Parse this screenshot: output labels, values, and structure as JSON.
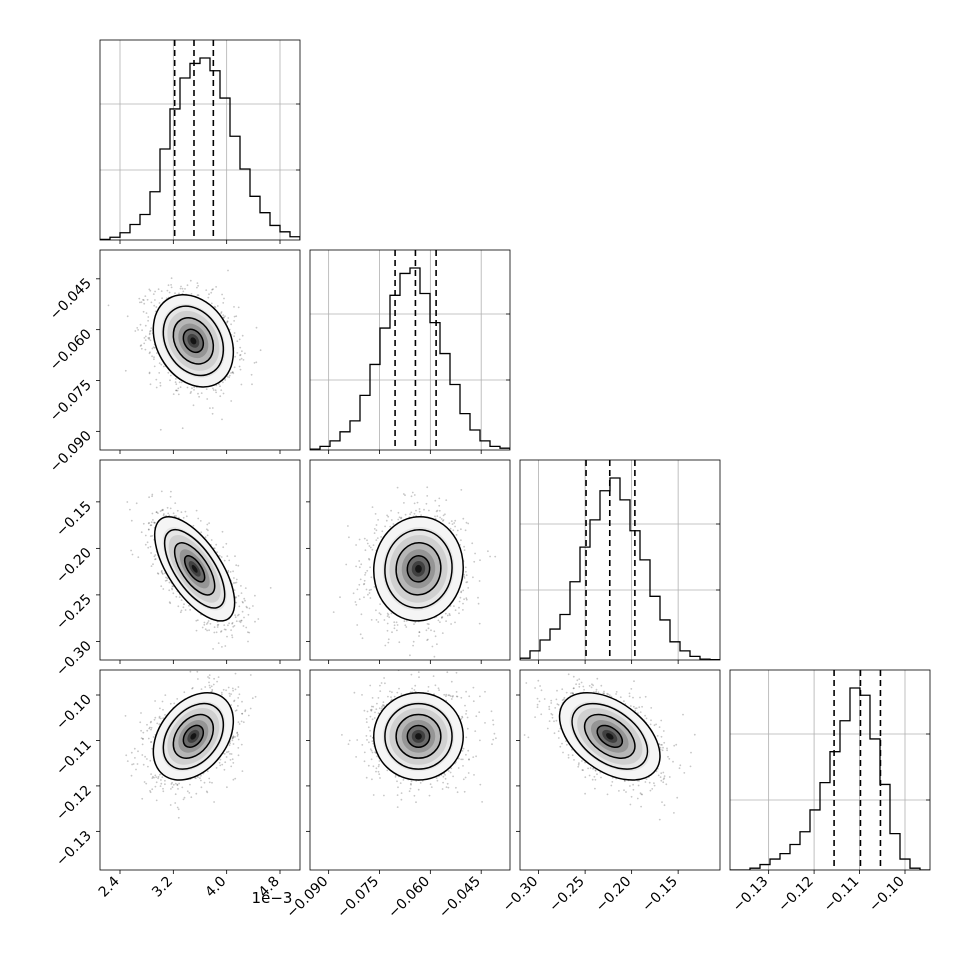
{
  "chart_data": {
    "type": "corner",
    "offset_label": "1e−3",
    "parameters": [
      {
        "range": [
          2.1,
          5.1
        ],
        "ticks": [
          "2.4",
          "3.2",
          "4.0",
          "4.8"
        ],
        "tick_values": [
          2.4,
          3.2,
          4.0,
          4.8
        ],
        "median": 3.51,
        "q16": 3.22,
        "q84": 3.8,
        "hist_edges_start": 2.1,
        "hist_bin_width": 0.15,
        "hist_values": [
          0.003,
          0.015,
          0.04,
          0.085,
          0.14,
          0.265,
          0.5,
          0.72,
          0.89,
          0.97,
          1.0,
          0.93,
          0.78,
          0.57,
          0.39,
          0.24,
          0.15,
          0.08,
          0.045,
          0.018
        ]
      },
      {
        "range": [
          -0.0955,
          -0.0365
        ],
        "ticks": [
          "−0.090",
          "−0.075",
          "−0.060",
          "−0.045"
        ],
        "tick_values": [
          -0.09,
          -0.075,
          -0.06,
          -0.045
        ],
        "median": -0.0644,
        "q16": -0.0704,
        "q84": -0.0583,
        "hist_edges_start": -0.0955,
        "hist_bin_width": 0.00295,
        "hist_values": [
          0.005,
          0.02,
          0.05,
          0.1,
          0.16,
          0.3,
          0.47,
          0.67,
          0.85,
          0.97,
          1.0,
          0.86,
          0.7,
          0.53,
          0.36,
          0.2,
          0.11,
          0.05,
          0.02,
          0.01
        ]
      },
      {
        "range": [
          -0.32,
          -0.105
        ],
        "ticks": [
          "−0.30",
          "−0.25",
          "−0.20",
          "−0.15"
        ],
        "tick_values": [
          -0.3,
          -0.25,
          -0.2,
          -0.15
        ],
        "median": -0.2235,
        "q16": -0.249,
        "q84": -0.1965,
        "hist_edges_start": -0.32,
        "hist_bin_width": 0.01075,
        "hist_values": [
          0.01,
          0.05,
          0.11,
          0.17,
          0.25,
          0.43,
          0.62,
          0.77,
          0.93,
          1.0,
          0.88,
          0.71,
          0.55,
          0.35,
          0.22,
          0.1,
          0.05,
          0.02,
          0.005,
          0.002
        ]
      },
      {
        "range": [
          -0.1385,
          -0.0945
        ],
        "ticks": [
          "−0.13",
          "−0.12",
          "−0.11",
          "−0.10"
        ],
        "tick_values": [
          -0.13,
          -0.12,
          -0.11,
          -0.1
        ],
        "median": -0.1098,
        "q16": -0.1156,
        "q84": -0.1054,
        "hist_edges_start": -0.1385,
        "hist_bin_width": 0.0022,
        "hist_values": [
          0.0,
          0.0,
          0.01,
          0.03,
          0.06,
          0.09,
          0.14,
          0.21,
          0.33,
          0.48,
          0.65,
          0.82,
          1.0,
          0.96,
          0.72,
          0.47,
          0.2,
          0.06,
          0.01,
          0.0
        ]
      }
    ],
    "pairs": [
      {
        "row": 1,
        "col": 0,
        "mean": [
          3.5,
          -0.0633
        ],
        "sd": [
          0.3,
          0.0068
        ],
        "corr": -0.25
      },
      {
        "row": 2,
        "col": 0,
        "mean": [
          3.52,
          -0.222
        ],
        "sd": [
          0.3,
          0.028
        ],
        "corr": -0.65
      },
      {
        "row": 2,
        "col": 1,
        "mean": [
          -0.0635,
          -0.222
        ],
        "sd": [
          0.0066,
          0.028
        ],
        "corr": 0.03
      },
      {
        "row": 3,
        "col": 0,
        "mean": [
          3.5,
          -0.1091
        ],
        "sd": [
          0.3,
          0.0048
        ],
        "corr": 0.35
      },
      {
        "row": 3,
        "col": 1,
        "mean": [
          -0.0635,
          -0.1091
        ],
        "sd": [
          0.0066,
          0.0048
        ],
        "corr": 0.0
      },
      {
        "row": 3,
        "col": 2,
        "mean": [
          -0.2235,
          -0.1091
        ],
        "sd": [
          0.027,
          0.0048
        ],
        "corr": -0.45
      }
    ],
    "contour_levels_sigma": [
      0.5,
      1.0,
      1.5,
      2.0
    ]
  }
}
